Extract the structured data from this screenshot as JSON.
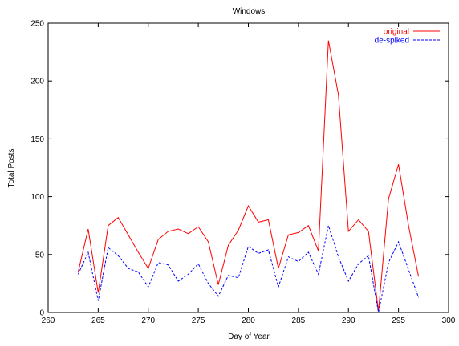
{
  "chart_data": {
    "type": "line",
    "title": "Windows",
    "xlabel": "Day of Year",
    "ylabel": "Total Posts",
    "xlim": [
      260,
      300
    ],
    "ylim": [
      0,
      250
    ],
    "x_ticks": [
      260,
      265,
      270,
      275,
      280,
      285,
      290,
      295,
      300
    ],
    "y_ticks": [
      0,
      50,
      100,
      150,
      200,
      250
    ],
    "grid": false,
    "legend_position": "top-right",
    "x": [
      263,
      264,
      265,
      266,
      267,
      268,
      269,
      270,
      271,
      272,
      273,
      274,
      275,
      276,
      277,
      278,
      279,
      280,
      281,
      282,
      283,
      284,
      285,
      286,
      287,
      288,
      289,
      290,
      291,
      292,
      293,
      294,
      295,
      296,
      297
    ],
    "series": [
      {
        "name": "original",
        "color": "#ff0000",
        "dash": "solid",
        "values": [
          35,
          72,
          17,
          75,
          82,
          67,
          52,
          38,
          63,
          70,
          72,
          68,
          74,
          61,
          24,
          58,
          71,
          92,
          78,
          80,
          38,
          67,
          69,
          75,
          53,
          235,
          188,
          70,
          80,
          70,
          1,
          98,
          128,
          75,
          31
        ]
      },
      {
        "name": "de-spiked",
        "color": "#0000ff",
        "dash": "dashed",
        "values": [
          33,
          52,
          10,
          56,
          49,
          38,
          35,
          22,
          43,
          41,
          27,
          33,
          42,
          25,
          14,
          32,
          30,
          57,
          51,
          54,
          22,
          48,
          44,
          52,
          33,
          75,
          48,
          27,
          42,
          49,
          0,
          43,
          61,
          37,
          13
        ]
      }
    ]
  }
}
